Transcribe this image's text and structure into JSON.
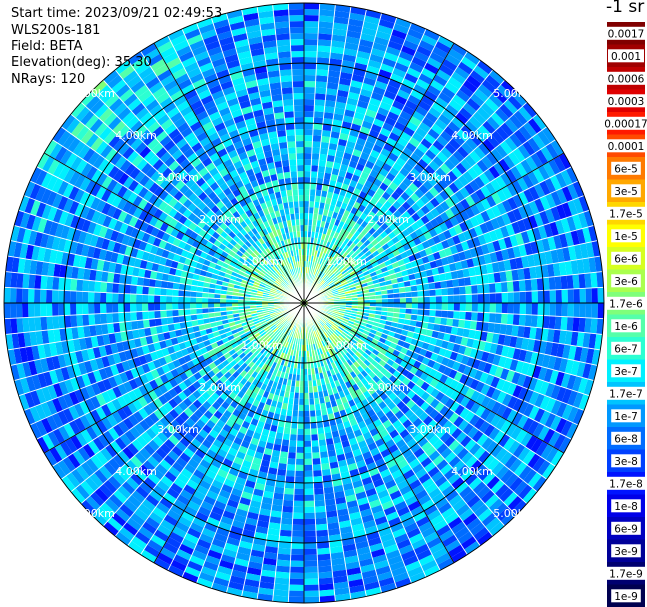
{
  "info": {
    "start_time": "Start time: 2023/09/21 02:49:53",
    "device": "WLS200s-181",
    "field": "Field: BETA",
    "elevation": "Elevation(deg): 35.30",
    "nrays": "NRays: 120"
  },
  "colorbar": {
    "unit": "-1 sr",
    "labels": [
      "0.0017",
      "0.001",
      "0.0006",
      "0.0003",
      "0.00017",
      "0.0001",
      "6e-5",
      "3e-5",
      "1.7e-5",
      "1e-5",
      "6e-6",
      "3e-6",
      "1.7e-6",
      "1e-6",
      "6e-7",
      "3e-7",
      "1.7e-7",
      "1e-7",
      "6e-8",
      "3e-8",
      "1.7e-8",
      "1e-8",
      "6e-9",
      "3e-9",
      "1.7e-9",
      "1e-9"
    ],
    "colors": [
      "#800000",
      "#a00000",
      "#c00000",
      "#e00000",
      "#ff1a00",
      "#ff4a00",
      "#ff7a00",
      "#ffa800",
      "#ffd600",
      "#ffff00",
      "#d6ff21",
      "#aaff4e",
      "#7fff7a",
      "#55ffaa",
      "#2cffd2",
      "#00f0ff",
      "#00c4ff",
      "#0098ff",
      "#006cff",
      "#0040ff",
      "#0014ff",
      "#0000e8",
      "#0000c0",
      "#000098",
      "#000070",
      "#000050"
    ]
  },
  "chart_data": {
    "type": "heatmap",
    "projection": "polar (PPI scan)",
    "field": "BETA",
    "nrays": 120,
    "range_rings_km": [
      1.0,
      2.0,
      3.0,
      4.0,
      5.0
    ],
    "ring_labels": [
      "1.00km",
      "2.00km",
      "3.00km",
      "4.00km",
      "5.00km"
    ],
    "radial_spokes_deg": [
      0,
      30,
      60,
      90,
      120,
      150,
      180,
      210,
      240,
      270,
      300,
      330
    ],
    "color_scale": "log",
    "value_range": [
      1e-09,
      0.0017
    ],
    "dominant_values": {
      "within_1km": "3e-6 to 1e-6",
      "1km_to_2km": "1e-6 to 3e-7",
      "2km_to_5km": "1.7e-7 to 3e-8",
      "northwest_edge": "1.7e-6"
    }
  }
}
